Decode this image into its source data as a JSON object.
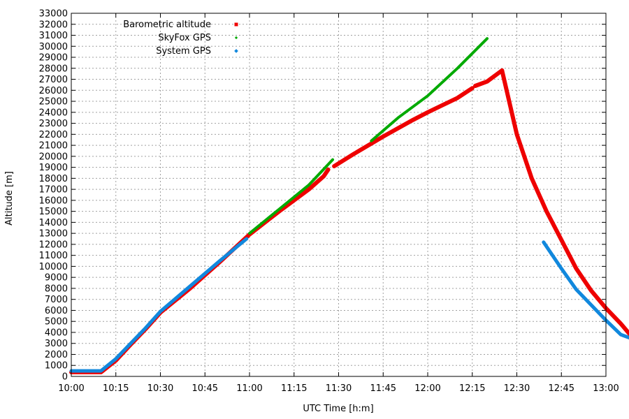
{
  "chart_data": {
    "type": "scatter",
    "xlabel": "UTC Time [h:m]",
    "ylabel": "Altitude [m]",
    "x_range_minutes": [
      600,
      780
    ],
    "x_tick_minutes": [
      600,
      615,
      630,
      645,
      660,
      675,
      690,
      705,
      720,
      735,
      750,
      765,
      780
    ],
    "x_tick_labels": [
      "10:00",
      "10:15",
      "10:30",
      "10:45",
      "11:00",
      "11:15",
      "11:30",
      "11:45",
      "12:00",
      "12:15",
      "12:30",
      "12:45",
      "13:00"
    ],
    "ylim": [
      0,
      33000
    ],
    "y_tick_labels": [
      "0",
      "1000",
      "2000",
      "3000",
      "4000",
      "5000",
      "6000",
      "7000",
      "8000",
      "9000",
      "10000",
      "11000",
      "12000",
      "13000",
      "14000",
      "15000",
      "16000",
      "17000",
      "18000",
      "19000",
      "20000",
      "21000",
      "22000",
      "23000",
      "24000",
      "25000",
      "26000",
      "27000",
      "28000",
      "29000",
      "30000",
      "31000",
      "32000",
      "33000"
    ],
    "grid": true,
    "legend_position": "top-left",
    "series": [
      {
        "name": "Barometric altitude",
        "color": "#ee0000",
        "segments": [
          [
            [
              600,
              380
            ],
            [
              610,
              380
            ],
            [
              615,
              1450
            ],
            [
              620,
              2900
            ],
            [
              625,
              4300
            ],
            [
              630,
              5800
            ],
            [
              640,
              8000
            ],
            [
              650,
              10400
            ],
            [
              660,
              12900
            ],
            [
              670,
              15000
            ],
            [
              680,
              17000
            ],
            [
              685,
              18200
            ],
            [
              686.5,
              18800
            ]
          ],
          [
            [
              688.5,
              19100
            ],
            [
              695,
              20200
            ],
            [
              705,
              21800
            ],
            [
              715,
              23300
            ],
            [
              720,
              24000
            ],
            [
              730,
              25300
            ],
            [
              735,
              26200
            ]
          ],
          [
            [
              736,
              26400
            ],
            [
              740,
              26800
            ],
            [
              745,
              27800
            ]
          ],
          [
            [
              745,
              27800
            ],
            [
              750,
              22000
            ],
            [
              755,
              18000
            ],
            [
              760,
              15000
            ],
            [
              765,
              12400
            ],
            [
              770,
              9800
            ],
            [
              775,
              7800
            ],
            [
              780,
              6200
            ],
            [
              785,
              4800
            ],
            [
              790,
              3200
            ]
          ]
        ]
      },
      {
        "name": "SkyFox GPS",
        "color": "#00aa00",
        "segments": [
          [
            [
              660,
              13000
            ],
            [
              670,
              15200
            ],
            [
              680,
              17400
            ],
            [
              688,
              19700
            ]
          ],
          [
            [
              701,
              21400
            ],
            [
              710,
              23500
            ],
            [
              720,
              25500
            ],
            [
              730,
              28000
            ],
            [
              740,
              30700
            ]
          ]
        ]
      },
      {
        "name": "System GPS",
        "color": "#1188dd",
        "segments": [
          [
            [
              600,
              500
            ],
            [
              610,
              500
            ],
            [
              615,
              1600
            ],
            [
              620,
              3000
            ],
            [
              625,
              4400
            ],
            [
              630,
              5900
            ],
            [
              640,
              8200
            ],
            [
              650,
              10500
            ],
            [
              659,
              12500
            ]
          ],
          [
            [
              759,
              12200
            ],
            [
              765,
              9800
            ],
            [
              770,
              7900
            ],
            [
              775,
              6500
            ],
            [
              780,
              5100
            ],
            [
              785,
              3800
            ],
            [
              790,
              3300
            ]
          ]
        ]
      }
    ]
  }
}
